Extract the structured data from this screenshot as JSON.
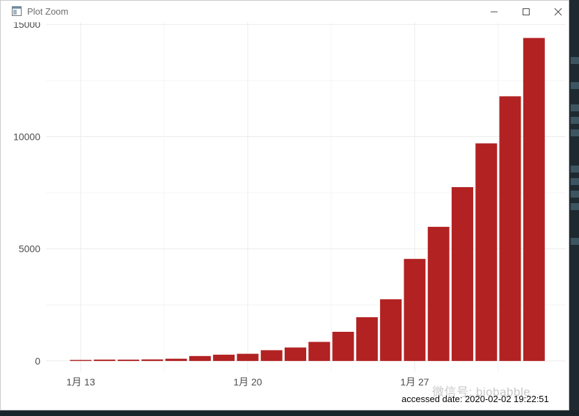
{
  "window": {
    "title": "Plot Zoom",
    "controls": {
      "minimize": "minimize",
      "maximize": "maximize",
      "close": "close"
    }
  },
  "chart_data": {
    "type": "bar",
    "x_tick_labels": [
      "1月 13",
      "1月 20",
      "1月 27"
    ],
    "y_tick_labels": [
      "0",
      "5000",
      "10000",
      "15000"
    ],
    "ylim": [
      -500,
      15100
    ],
    "grid": true,
    "bar_color": "#b22222",
    "values": [
      45,
      62,
      60,
      70,
      100,
      220,
      280,
      320,
      480,
      600,
      850,
      1300,
      1950,
      2750,
      4550,
      5980,
      7750,
      9700,
      11800,
      14400
    ]
  },
  "footer": {
    "accessed": "accessed date: 2020-02-02 19:22:51"
  },
  "watermark": {
    "text": "微信号: biobabble"
  }
}
